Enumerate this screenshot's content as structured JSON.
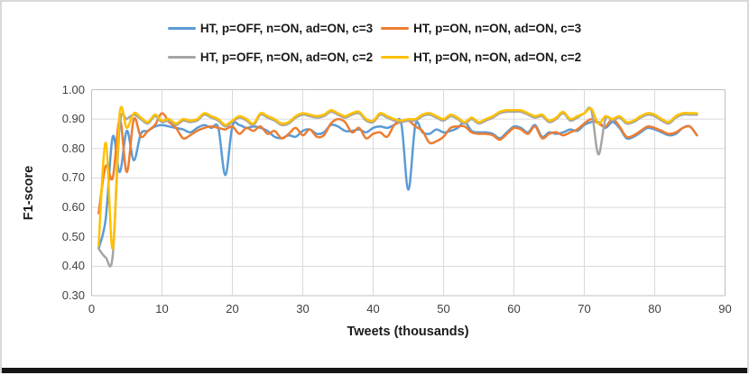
{
  "chart_data": {
    "type": "line",
    "title": "",
    "xlabel": "Tweets (thousands)",
    "ylabel": "F1-score",
    "xlim": [
      0,
      90
    ],
    "ylim": [
      0.3,
      1.0
    ],
    "grid": true,
    "legend_position": "top",
    "x_ticks": [
      0,
      10,
      20,
      30,
      40,
      50,
      60,
      70,
      80,
      90
    ],
    "x_tick_labels": [
      "0",
      "10",
      "20",
      "30",
      "40",
      "50",
      "60",
      "70",
      "80",
      "90"
    ],
    "y_ticks": [
      0.3,
      0.4,
      0.5,
      0.6,
      0.7,
      0.8,
      0.9,
      1.0
    ],
    "y_tick_labels": [
      "0.30",
      "0.40",
      "0.50",
      "0.60",
      "0.70",
      "0.80",
      "0.90",
      "1.00"
    ],
    "x": [
      1,
      2,
      3,
      4,
      5,
      6,
      7,
      8,
      9,
      10,
      11,
      12,
      13,
      14,
      15,
      16,
      17,
      18,
      19,
      20,
      21,
      22,
      23,
      24,
      25,
      26,
      27,
      28,
      29,
      30,
      31,
      32,
      33,
      34,
      35,
      36,
      37,
      38,
      39,
      40,
      41,
      42,
      43,
      44,
      45,
      46,
      47,
      48,
      49,
      50,
      51,
      52,
      53,
      54,
      55,
      56,
      57,
      58,
      59,
      60,
      61,
      62,
      63,
      64,
      65,
      66,
      67,
      68,
      69,
      70,
      71,
      72,
      73,
      74,
      75,
      76,
      77,
      78,
      79,
      80,
      81,
      82,
      83,
      84,
      85,
      86
    ],
    "series": [
      {
        "name": "HT, p=OFF, n=ON, ad=ON, c=3",
        "color": "#5B9BD5",
        "values": [
          0.46,
          0.56,
          0.84,
          0.72,
          0.86,
          0.76,
          0.85,
          0.86,
          0.875,
          0.88,
          0.875,
          0.87,
          0.865,
          0.855,
          0.87,
          0.88,
          0.87,
          0.87,
          0.71,
          0.875,
          0.88,
          0.87,
          0.875,
          0.87,
          0.86,
          0.84,
          0.835,
          0.845,
          0.84,
          0.86,
          0.865,
          0.85,
          0.855,
          0.88,
          0.875,
          0.86,
          0.86,
          0.865,
          0.855,
          0.87,
          0.875,
          0.87,
          0.88,
          0.885,
          0.66,
          0.88,
          0.855,
          0.85,
          0.865,
          0.855,
          0.86,
          0.87,
          0.89,
          0.86,
          0.855,
          0.855,
          0.85,
          0.835,
          0.855,
          0.875,
          0.87,
          0.855,
          0.88,
          0.84,
          0.855,
          0.85,
          0.855,
          0.865,
          0.86,
          0.88,
          0.89,
          0.89,
          0.87,
          0.89,
          0.87,
          0.835,
          0.84,
          0.855,
          0.87,
          0.865,
          0.855,
          0.845,
          0.85,
          0.87,
          0.875,
          0.845
        ]
      },
      {
        "name": "HT, p=ON, n=ON, ad=ON, c=3",
        "color": "#ED7D31",
        "values": [
          0.58,
          0.74,
          0.7,
          0.9,
          0.72,
          0.9,
          0.84,
          0.86,
          0.88,
          0.92,
          0.89,
          0.87,
          0.835,
          0.845,
          0.86,
          0.87,
          0.875,
          0.87,
          0.865,
          0.875,
          0.85,
          0.87,
          0.86,
          0.875,
          0.85,
          0.86,
          0.835,
          0.85,
          0.87,
          0.845,
          0.865,
          0.84,
          0.845,
          0.885,
          0.9,
          0.89,
          0.855,
          0.87,
          0.835,
          0.85,
          0.855,
          0.84,
          0.88,
          0.89,
          0.895,
          0.875,
          0.86,
          0.82,
          0.825,
          0.84,
          0.87,
          0.875,
          0.875,
          0.855,
          0.85,
          0.85,
          0.845,
          0.83,
          0.85,
          0.87,
          0.865,
          0.85,
          0.875,
          0.835,
          0.85,
          0.855,
          0.845,
          0.855,
          0.865,
          0.885,
          0.9,
          0.885,
          0.875,
          0.9,
          0.875,
          0.84,
          0.845,
          0.86,
          0.875,
          0.87,
          0.86,
          0.85,
          0.855,
          0.87,
          0.875,
          0.845
        ]
      },
      {
        "name": "HT, p=OFF, n=ON, ad=ON, c=2",
        "color": "#A5A5A5",
        "values": [
          0.46,
          0.43,
          0.435,
          0.88,
          0.9,
          0.915,
          0.9,
          0.885,
          0.91,
          0.89,
          0.895,
          0.88,
          0.895,
          0.89,
          0.895,
          0.915,
          0.905,
          0.895,
          0.875,
          0.89,
          0.905,
          0.895,
          0.88,
          0.915,
          0.905,
          0.895,
          0.88,
          0.885,
          0.905,
          0.915,
          0.91,
          0.905,
          0.91,
          0.925,
          0.915,
          0.905,
          0.915,
          0.92,
          0.895,
          0.89,
          0.915,
          0.905,
          0.895,
          0.89,
          0.895,
          0.895,
          0.91,
          0.915,
          0.905,
          0.895,
          0.91,
          0.9,
          0.885,
          0.9,
          0.885,
          0.895,
          0.905,
          0.92,
          0.925,
          0.925,
          0.925,
          0.915,
          0.905,
          0.91,
          0.89,
          0.9,
          0.92,
          0.895,
          0.905,
          0.92,
          0.93,
          0.78,
          0.9,
          0.895,
          0.905,
          0.885,
          0.89,
          0.905,
          0.915,
          0.91,
          0.895,
          0.885,
          0.905,
          0.915,
          0.915,
          0.915
        ]
      },
      {
        "name": "HT, p=ON, n=ON, ad=ON, c=2",
        "color": "#FFC000",
        "values": [
          0.47,
          0.82,
          0.46,
          0.92,
          0.87,
          0.92,
          0.905,
          0.89,
          0.915,
          0.895,
          0.9,
          0.885,
          0.9,
          0.895,
          0.9,
          0.92,
          0.91,
          0.9,
          0.88,
          0.895,
          0.91,
          0.9,
          0.885,
          0.92,
          0.91,
          0.9,
          0.885,
          0.89,
          0.91,
          0.92,
          0.915,
          0.91,
          0.915,
          0.93,
          0.92,
          0.91,
          0.92,
          0.925,
          0.9,
          0.895,
          0.92,
          0.91,
          0.9,
          0.895,
          0.9,
          0.9,
          0.915,
          0.92,
          0.91,
          0.9,
          0.915,
          0.905,
          0.89,
          0.905,
          0.89,
          0.9,
          0.91,
          0.925,
          0.93,
          0.93,
          0.93,
          0.92,
          0.91,
          0.915,
          0.895,
          0.905,
          0.925,
          0.9,
          0.91,
          0.92,
          0.935,
          0.885,
          0.91,
          0.9,
          0.91,
          0.89,
          0.895,
          0.91,
          0.92,
          0.915,
          0.9,
          0.89,
          0.91,
          0.92,
          0.92,
          0.92
        ]
      }
    ],
    "colors": {
      "gridline": "#D9D9D9",
      "axis_line": "#BFBFBF",
      "tick_text": "#404040",
      "label_text": "#1A1A1A"
    }
  }
}
